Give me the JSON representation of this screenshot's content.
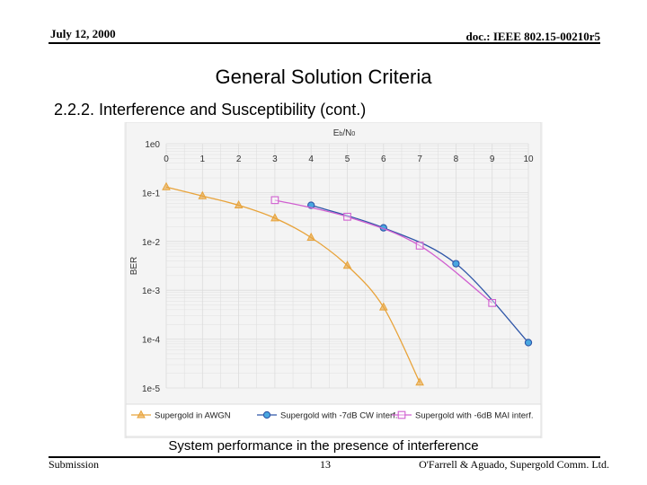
{
  "header": {
    "date": "July 12, 2000",
    "doc": "doc.: IEEE 802.15-00210r5"
  },
  "slide": {
    "title": "General Solution Criteria",
    "subtitle": "2.2.2. Interference and Susceptibility (cont.)",
    "caption": "System performance in the presence of interference"
  },
  "footer": {
    "left": "Submission",
    "page": "13",
    "right": "O'Farrell & Aguado, Supergold Comm. Ltd."
  },
  "chart_data": {
    "type": "line",
    "xlabel": "Eb/N0",
    "ylabel": "BER",
    "xlim": [
      0,
      10
    ],
    "yscale": "log",
    "ylim": [
      1e-05,
      1
    ],
    "x_ticks": [
      "0",
      "1",
      "2",
      "3",
      "4",
      "5",
      "6",
      "7",
      "8",
      "9",
      "10"
    ],
    "y_ticks": [
      "1e0",
      "1e-1",
      "1e-2",
      "1e-3",
      "1e-4",
      "1e-5"
    ],
    "grid": true,
    "legend_position": "bottom",
    "series": [
      {
        "name": "Supergold in AWGN",
        "color": "#e8a33a",
        "marker": "triangle",
        "x": [
          0,
          1,
          2,
          3,
          4,
          5,
          6,
          7
        ],
        "y": [
          0.13,
          0.085,
          0.055,
          0.03,
          0.012,
          0.0032,
          0.00045,
          1.3e-05
        ]
      },
      {
        "name": "Supergold with -7dB CW interf.",
        "color": "#2f56a8",
        "marker": "circle",
        "x": [
          4,
          6,
          8,
          10
        ],
        "y": [
          0.055,
          0.019,
          0.0035,
          8.5e-05
        ]
      },
      {
        "name": "Supergold with -6dB MAI interf.",
        "color": "#d060d0",
        "marker": "square",
        "x": [
          3,
          5,
          7,
          9
        ],
        "y": [
          0.07,
          0.032,
          0.0082,
          0.00055
        ]
      }
    ]
  }
}
